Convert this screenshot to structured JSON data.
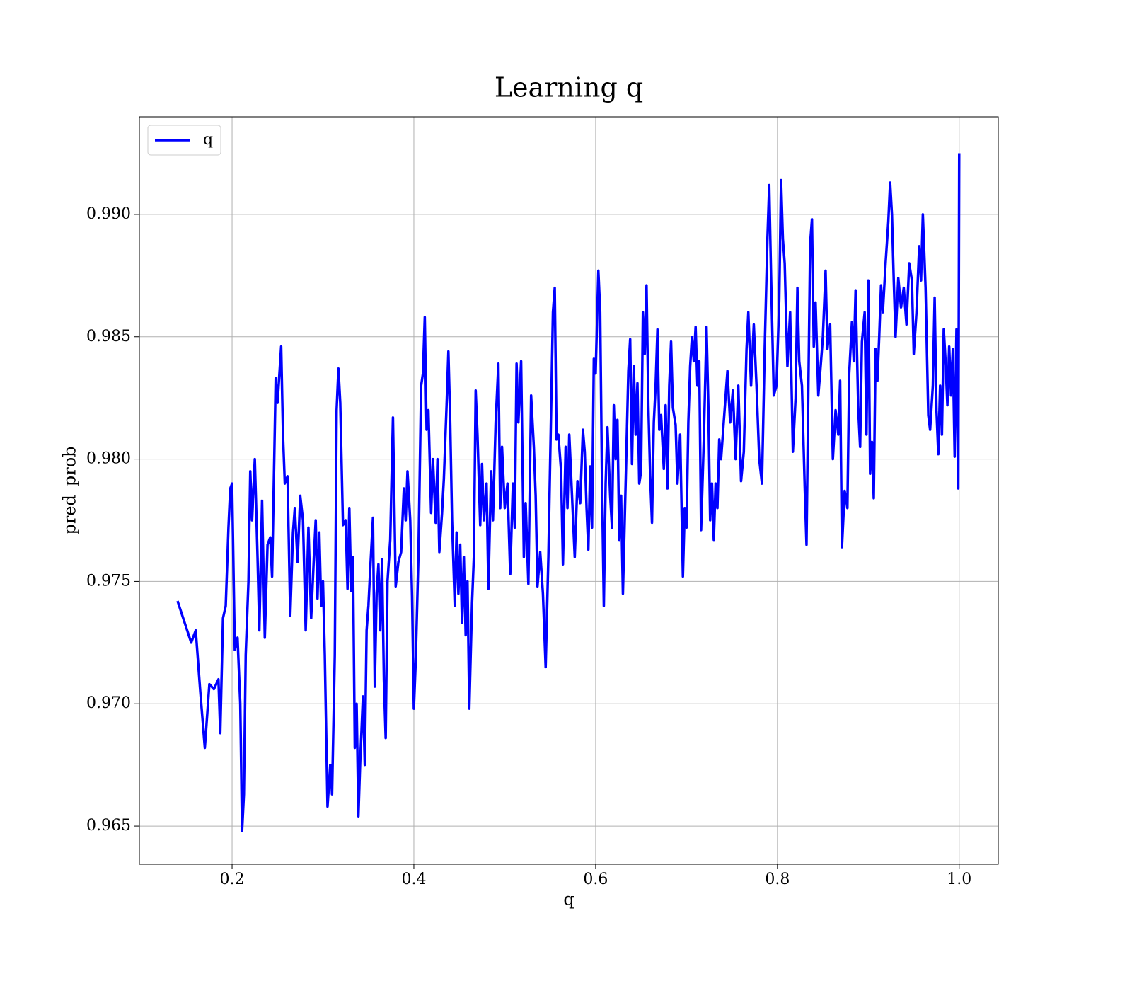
{
  "chart_data": {
    "type": "line",
    "title": "Learning q",
    "xlabel": "q",
    "ylabel": "pred_prob",
    "xlim": [
      0.098,
      1.043
    ],
    "ylim": [
      0.96344,
      0.99399
    ],
    "xticks": [
      0.2,
      0.4,
      0.6,
      0.8,
      {
        "value": 1.0,
        "label": "1.0"
      }
    ],
    "yticks": [
      0.965,
      {
        "value": 0.97,
        "label": "0.970"
      },
      0.975,
      {
        "value": 0.98,
        "label": "0.980"
      },
      0.985,
      {
        "value": 0.99,
        "label": "0.990"
      }
    ],
    "grid": true,
    "legend": "upper left",
    "x": [
      0.14,
      0.155,
      0.16,
      0.165,
      0.17,
      0.175,
      0.18,
      0.185,
      0.187,
      0.19,
      0.193,
      0.196,
      0.198,
      0.2,
      0.203,
      0.206,
      0.209,
      0.211,
      0.213,
      0.215,
      0.218,
      0.22,
      0.222,
      0.225,
      0.228,
      0.23,
      0.233,
      0.236,
      0.239,
      0.242,
      0.244,
      0.248,
      0.25,
      0.254,
      0.256,
      0.258,
      0.261,
      0.264,
      0.267,
      0.269,
      0.272,
      0.275,
      0.278,
      0.281,
      0.284,
      0.287,
      0.29,
      0.292,
      0.294,
      0.296,
      0.298,
      0.3,
      0.302,
      0.305,
      0.308,
      0.31,
      0.313,
      0.315,
      0.317,
      0.319,
      0.322,
      0.325,
      0.327,
      0.329,
      0.331,
      0.333,
      0.335,
      0.337,
      0.339,
      0.341,
      0.344,
      0.346,
      0.348,
      0.35,
      0.352,
      0.355,
      0.357,
      0.359,
      0.361,
      0.363,
      0.365,
      0.367,
      0.369,
      0.371,
      0.374,
      0.377,
      0.38,
      0.383,
      0.386,
      0.389,
      0.391,
      0.393,
      0.396,
      0.398,
      0.4,
      0.402,
      0.405,
      0.408,
      0.41,
      0.412,
      0.414,
      0.416,
      0.419,
      0.421,
      0.424,
      0.426,
      0.428,
      0.431,
      0.433,
      0.436,
      0.438,
      0.44,
      0.442,
      0.445,
      0.447,
      0.449,
      0.451,
      0.453,
      0.455,
      0.457,
      0.459,
      0.461,
      0.464,
      0.466,
      0.468,
      0.47,
      0.473,
      0.475,
      0.477,
      0.48,
      0.482,
      0.485,
      0.487,
      0.49,
      0.493,
      0.495,
      0.497,
      0.5,
      0.503,
      0.506,
      0.509,
      0.511,
      0.513,
      0.515,
      0.518,
      0.521,
      0.523,
      0.526,
      0.529,
      0.532,
      0.534,
      0.536,
      0.539,
      0.542,
      0.545,
      0.548,
      0.551,
      0.553,
      0.555,
      0.557,
      0.559,
      0.562,
      0.564,
      0.567,
      0.569,
      0.571,
      0.574,
      0.577,
      0.58,
      0.583,
      0.586,
      0.588,
      0.59,
      0.592,
      0.594,
      0.596,
      0.598,
      0.6,
      0.603,
      0.605,
      0.607,
      0.609,
      0.611,
      0.613,
      0.616,
      0.618,
      0.62,
      0.622,
      0.624,
      0.626,
      0.628,
      0.63,
      0.633,
      0.636,
      0.638,
      0.64,
      0.642,
      0.644,
      0.646,
      0.648,
      0.65,
      0.652,
      0.654,
      0.656,
      0.658,
      0.66,
      0.662,
      0.664,
      0.666,
      0.668,
      0.67,
      0.672,
      0.675,
      0.677,
      0.679,
      0.681,
      0.683,
      0.685,
      0.688,
      0.69,
      0.693,
      0.696,
      0.698,
      0.7,
      0.702,
      0.704,
      0.706,
      0.708,
      0.71,
      0.712,
      0.714,
      0.716,
      0.719,
      0.722,
      0.724,
      0.726,
      0.728,
      0.73,
      0.732,
      0.734,
      0.736,
      0.738,
      0.745,
      0.748,
      0.751,
      0.754,
      0.757,
      0.76,
      0.763,
      0.766,
      0.768,
      0.771,
      0.774,
      0.777,
      0.78,
      0.783,
      0.786,
      0.789,
      0.791,
      0.793,
      0.796,
      0.799,
      0.802,
      0.804,
      0.806,
      0.808,
      0.811,
      0.814,
      0.817,
      0.82,
      0.822,
      0.824,
      0.827,
      0.83,
      0.832,
      0.834,
      0.836,
      0.838,
      0.84,
      0.842,
      0.845,
      0.848,
      0.85,
      0.853,
      0.855,
      0.858,
      0.861,
      0.864,
      0.867,
      0.869,
      0.871,
      0.874,
      0.877,
      0.879,
      0.882,
      0.884,
      0.886,
      0.889,
      0.891,
      0.893,
      0.896,
      0.898,
      0.9,
      0.902,
      0.904,
      0.906,
      0.908,
      0.91,
      0.912,
      0.914,
      0.916,
      0.919,
      0.922,
      0.924,
      0.926,
      0.928,
      0.93,
      0.933,
      0.936,
      0.939,
      0.942,
      0.945,
      0.948,
      0.95,
      0.953,
      0.956,
      0.958,
      0.96,
      0.963,
      0.966,
      0.968,
      0.971,
      0.973,
      0.975,
      0.977,
      0.979,
      0.981,
      0.983,
      0.985,
      0.987,
      0.989,
      0.991,
      0.993,
      0.995,
      0.997,
      0.999,
      1.0
    ],
    "series": [
      {
        "name": "q",
        "color": "#0000ff",
        "values": [
          0.9742,
          0.9725,
          0.973,
          0.9705,
          0.9682,
          0.9708,
          0.9706,
          0.971,
          0.9688,
          0.9735,
          0.974,
          0.9772,
          0.9788,
          0.979,
          0.9722,
          0.9727,
          0.97,
          0.9648,
          0.9663,
          0.972,
          0.975,
          0.9795,
          0.9775,
          0.98,
          0.976,
          0.973,
          0.9783,
          0.9727,
          0.9765,
          0.9768,
          0.9752,
          0.9833,
          0.9823,
          0.9846,
          0.981,
          0.979,
          0.9793,
          0.9736,
          0.977,
          0.978,
          0.9758,
          0.9785,
          0.9775,
          0.973,
          0.9772,
          0.9735,
          0.976,
          0.9775,
          0.9743,
          0.977,
          0.974,
          0.975,
          0.972,
          0.9658,
          0.9675,
          0.9663,
          0.972,
          0.982,
          0.9837,
          0.9823,
          0.9773,
          0.9775,
          0.9747,
          0.978,
          0.9746,
          0.976,
          0.9682,
          0.97,
          0.9654,
          0.9677,
          0.9703,
          0.9675,
          0.973,
          0.974,
          0.9755,
          0.9776,
          0.9707,
          0.9745,
          0.9757,
          0.973,
          0.9759,
          0.971,
          0.9686,
          0.975,
          0.9767,
          0.9817,
          0.9748,
          0.9758,
          0.9762,
          0.9788,
          0.9775,
          0.9795,
          0.9775,
          0.9744,
          0.9698,
          0.9717,
          0.976,
          0.983,
          0.9835,
          0.9858,
          0.9812,
          0.982,
          0.9778,
          0.98,
          0.9774,
          0.98,
          0.9762,
          0.9778,
          0.9792,
          0.9822,
          0.9844,
          0.9815,
          0.9775,
          0.974,
          0.977,
          0.9745,
          0.9765,
          0.9733,
          0.976,
          0.9728,
          0.975,
          0.9698,
          0.9741,
          0.976,
          0.9828,
          0.981,
          0.9773,
          0.9798,
          0.9775,
          0.979,
          0.9747,
          0.9795,
          0.9775,
          0.9815,
          0.9839,
          0.978,
          0.9805,
          0.978,
          0.979,
          0.9753,
          0.979,
          0.9772,
          0.9839,
          0.9815,
          0.984,
          0.976,
          0.9782,
          0.9749,
          0.9826,
          0.9805,
          0.9785,
          0.9748,
          0.9762,
          0.9745,
          0.9715,
          0.976,
          0.982,
          0.986,
          0.987,
          0.9808,
          0.981,
          0.9795,
          0.9757,
          0.9805,
          0.978,
          0.981,
          0.9785,
          0.976,
          0.9791,
          0.9782,
          0.9812,
          0.9803,
          0.978,
          0.9763,
          0.9797,
          0.9772,
          0.9841,
          0.9835,
          0.9877,
          0.986,
          0.979,
          0.974,
          0.979,
          0.9813,
          0.9785,
          0.9772,
          0.9822,
          0.98,
          0.9816,
          0.9767,
          0.9785,
          0.9745,
          0.979,
          0.9836,
          0.9849,
          0.9798,
          0.9838,
          0.981,
          0.9831,
          0.979,
          0.9795,
          0.986,
          0.9843,
          0.9871,
          0.9822,
          0.9793,
          0.9774,
          0.9815,
          0.983,
          0.9853,
          0.9812,
          0.9818,
          0.9796,
          0.9822,
          0.9788,
          0.983,
          0.9848,
          0.9821,
          0.9814,
          0.979,
          0.981,
          0.9752,
          0.978,
          0.9772,
          0.9815,
          0.9838,
          0.985,
          0.984,
          0.9854,
          0.983,
          0.984,
          0.9771,
          0.9808,
          0.9854,
          0.9822,
          0.9775,
          0.979,
          0.9767,
          0.979,
          0.978,
          0.9808,
          0.98,
          0.9836,
          0.9815,
          0.9828,
          0.98,
          0.983,
          0.9791,
          0.9803,
          0.9845,
          0.986,
          0.983,
          0.9855,
          0.983,
          0.98,
          0.979,
          0.9845,
          0.989,
          0.9912,
          0.9875,
          0.9826,
          0.983,
          0.9865,
          0.9914,
          0.989,
          0.988,
          0.9838,
          0.986,
          0.9803,
          0.9825,
          0.987,
          0.984,
          0.983,
          0.9789,
          0.9765,
          0.9827,
          0.9888,
          0.9898,
          0.9846,
          0.9864,
          0.9826,
          0.984,
          0.985,
          0.9877,
          0.9845,
          0.9855,
          0.98,
          0.982,
          0.981,
          0.9832,
          0.9764,
          0.9787,
          0.978,
          0.9835,
          0.9856,
          0.984,
          0.9869,
          0.982,
          0.9805,
          0.9848,
          0.986,
          0.981,
          0.9873,
          0.9794,
          0.9807,
          0.9784,
          0.9845,
          0.9832,
          0.985,
          0.9871,
          0.986,
          0.988,
          0.9897,
          0.9913,
          0.99,
          0.9873,
          0.985,
          0.9874,
          0.9862,
          0.987,
          0.9855,
          0.988,
          0.9873,
          0.9843,
          0.986,
          0.9887,
          0.9873,
          0.99,
          0.987,
          0.9818,
          0.9812,
          0.983,
          0.9866,
          0.982,
          0.9802,
          0.983,
          0.981,
          0.9853,
          0.984,
          0.9822,
          0.9846,
          0.9826,
          0.9845,
          0.9801,
          0.9853,
          0.9788,
          0.9925
        ]
      }
    ]
  }
}
